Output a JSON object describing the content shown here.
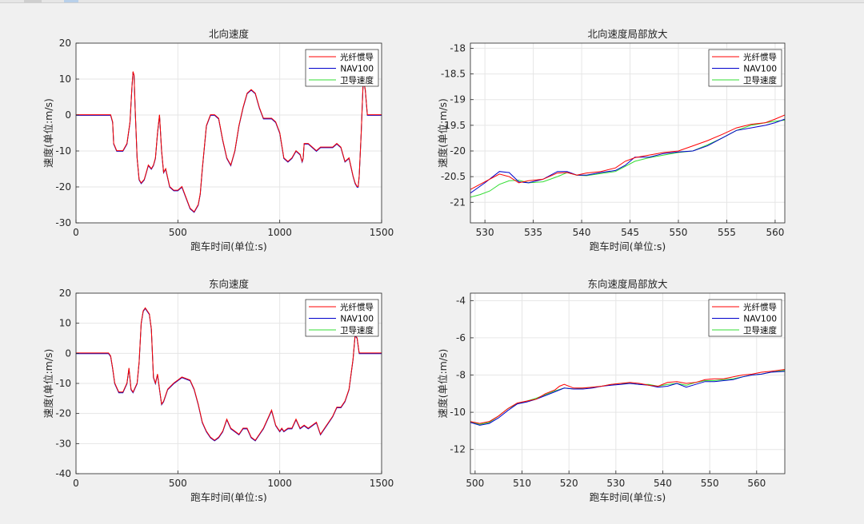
{
  "chart_data": [
    {
      "type": "line",
      "title": "北向速度",
      "xlabel": "跑车时间(单位:s)",
      "ylabel": "速度(单位:m/s)",
      "xlim": [
        0,
        1500
      ],
      "ylim": [
        -30,
        20
      ],
      "xticks": [
        0,
        500,
        1000,
        1500
      ],
      "yticks": [
        -30,
        -20,
        -10,
        0,
        10,
        20
      ],
      "grid": true,
      "legend_position": "top-right",
      "series": [
        {
          "name": "光纤惯导",
          "color": "#ff0000"
        },
        {
          "name": "NAV100",
          "color": "#0000cc"
        },
        {
          "name": "卫导速度",
          "color": "#33dd33"
        }
      ],
      "x": [
        0,
        170,
        180,
        185,
        200,
        215,
        230,
        250,
        265,
        275,
        280,
        285,
        290,
        300,
        310,
        320,
        335,
        345,
        355,
        370,
        380,
        390,
        400,
        410,
        420,
        430,
        440,
        460,
        480,
        500,
        520,
        540,
        560,
        580,
        600,
        610,
        620,
        640,
        660,
        680,
        700,
        720,
        740,
        760,
        780,
        800,
        820,
        840,
        860,
        880,
        900,
        920,
        940,
        960,
        980,
        1000,
        1020,
        1040,
        1060,
        1080,
        1100,
        1110,
        1115,
        1120,
        1140,
        1160,
        1180,
        1200,
        1220,
        1240,
        1260,
        1280,
        1300,
        1320,
        1340,
        1360,
        1370,
        1380,
        1385,
        1390,
        1400,
        1410,
        1420,
        1430,
        1500
      ],
      "values": [
        0,
        0,
        -2,
        -8,
        -10,
        -10,
        -10,
        -8,
        -2,
        8,
        12,
        11,
        2,
        -12,
        -18,
        -19,
        -18,
        -16,
        -14,
        -15,
        -14,
        -12,
        -5,
        0,
        -10,
        -16,
        -15,
        -20,
        -21,
        -21,
        -20,
        -23,
        -26,
        -27,
        -25,
        -22,
        -15,
        -3,
        0,
        0,
        -1,
        -7,
        -12,
        -14,
        -10,
        -3,
        2,
        6,
        7,
        6,
        2,
        -1,
        -1,
        -1,
        -2,
        -5,
        -12,
        -13,
        -12,
        -10,
        -11,
        -13,
        -12,
        -8,
        -8,
        -9,
        -10,
        -9,
        -9,
        -9,
        -9,
        -8,
        -9,
        -13,
        -12,
        -17,
        -19,
        -20,
        -20,
        -17,
        -5,
        10,
        7,
        0,
        0
      ]
    },
    {
      "type": "line",
      "title": "北向速度局部放大",
      "xlabel": "跑车时间(单位:s)",
      "ylabel": "速度(单位:m/s)",
      "xlim": [
        528.5,
        561
      ],
      "ylim": [
        -21.4,
        -17.9
      ],
      "xticks": [
        530,
        535,
        540,
        545,
        550,
        555,
        560
      ],
      "yticks": [
        -21,
        -20.5,
        -20,
        -19.5,
        -19,
        -18.5,
        -18
      ],
      "grid": true,
      "legend_position": "top-right",
      "series": [
        {
          "name": "光纤惯导",
          "color": "#ff0000",
          "x": [
            528.5,
            530,
            531.5,
            532.5,
            533.5,
            534.5,
            536,
            537.5,
            538.5,
            539.5,
            540.5,
            542,
            543.5,
            544.5,
            545.5,
            547,
            548.5,
            550,
            551.5,
            553,
            554.5,
            556,
            557.5,
            559,
            560,
            561
          ],
          "values": [
            -20.75,
            -20.6,
            -20.45,
            -20.5,
            -20.62,
            -20.58,
            -20.55,
            -20.43,
            -20.42,
            -20.47,
            -20.43,
            -20.4,
            -20.33,
            -20.2,
            -20.13,
            -20.08,
            -20.03,
            -20,
            -19.9,
            -19.8,
            -19.68,
            -19.55,
            -19.48,
            -19.45,
            -19.38,
            -19.3
          ]
        },
        {
          "name": "NAV100",
          "color": "#0000cc",
          "x": [
            528.5,
            530,
            531.5,
            532.5,
            533.5,
            534.5,
            536,
            537.5,
            538.5,
            539.5,
            540.5,
            542,
            543.5,
            544.5,
            545.5,
            547,
            548.5,
            550,
            551.5,
            553,
            554.5,
            556,
            557.5,
            559,
            560,
            561
          ],
          "values": [
            -20.82,
            -20.62,
            -20.4,
            -20.42,
            -20.6,
            -20.62,
            -20.55,
            -20.4,
            -20.4,
            -20.47,
            -20.47,
            -20.42,
            -20.38,
            -20.28,
            -20.12,
            -20.12,
            -20.05,
            -20.02,
            -20,
            -19.9,
            -19.75,
            -19.6,
            -19.55,
            -19.5,
            -19.45,
            -19.38
          ]
        },
        {
          "name": "卫导速度",
          "color": "#33dd33",
          "x": [
            528.5,
            529.5,
            530.5,
            531.5,
            532.5,
            533.5,
            534.5,
            536,
            537.5,
            538.5,
            539.5,
            540.5,
            542,
            543.5,
            544.5,
            545.5,
            547,
            548.5,
            550,
            551.5,
            553,
            554.5,
            556,
            557.5,
            559,
            560,
            561
          ],
          "values": [
            -20.9,
            -20.85,
            -20.78,
            -20.65,
            -20.58,
            -20.57,
            -20.62,
            -20.6,
            -20.5,
            -20.42,
            -20.47,
            -20.48,
            -20.44,
            -20.4,
            -20.3,
            -20.2,
            -20.13,
            -20.08,
            -20.03,
            -20,
            -19.88,
            -19.75,
            -19.6,
            -19.5,
            -19.45,
            -19.42,
            -19.4
          ]
        }
      ]
    },
    {
      "type": "line",
      "title": "东向速度",
      "xlabel": "跑车时间(单位:s)",
      "ylabel": "速度(单位:m/s)",
      "xlim": [
        0,
        1500
      ],
      "ylim": [
        -40,
        20
      ],
      "xticks": [
        0,
        500,
        1000,
        1500
      ],
      "yticks": [
        -40,
        -30,
        -20,
        -10,
        0,
        10,
        20
      ],
      "grid": true,
      "legend_position": "top-right",
      "series": [
        {
          "name": "光纤惯导",
          "color": "#ff0000"
        },
        {
          "name": "NAV100",
          "color": "#0000cc"
        },
        {
          "name": "卫导速度",
          "color": "#33dd33"
        }
      ],
      "x": [
        0,
        160,
        170,
        180,
        190,
        210,
        230,
        250,
        260,
        270,
        280,
        300,
        310,
        320,
        330,
        340,
        350,
        360,
        370,
        380,
        390,
        400,
        410,
        420,
        430,
        450,
        480,
        500,
        520,
        560,
        580,
        600,
        620,
        640,
        660,
        680,
        700,
        720,
        740,
        760,
        780,
        800,
        820,
        840,
        860,
        880,
        900,
        920,
        940,
        960,
        980,
        1000,
        1010,
        1020,
        1040,
        1060,
        1080,
        1100,
        1120,
        1140,
        1160,
        1180,
        1200,
        1220,
        1240,
        1260,
        1280,
        1300,
        1320,
        1340,
        1360,
        1370,
        1380,
        1390,
        1400,
        1410,
        1420,
        1430,
        1500
      ],
      "values": [
        0,
        0,
        -1,
        -5,
        -10,
        -13,
        -13,
        -10,
        -5,
        -12,
        -13,
        -10,
        -3,
        10,
        14,
        15,
        14,
        13,
        8,
        -8,
        -10,
        -7,
        -12,
        -17,
        -16,
        -12,
        -10,
        -9,
        -8,
        -9,
        -12,
        -17,
        -23,
        -26,
        -28,
        -29,
        -28,
        -26,
        -22,
        -25,
        -26,
        -27,
        -25,
        -25,
        -28,
        -29,
        -27,
        -25,
        -22,
        -19,
        -24,
        -26,
        -25,
        -26,
        -25,
        -25,
        -22,
        -25,
        -24,
        -25,
        -24,
        -23,
        -27,
        -25,
        -23,
        -21,
        -18,
        -18,
        -16,
        -12,
        -2,
        6,
        5,
        0,
        0,
        0,
        0,
        0,
        0
      ]
    },
    {
      "type": "line",
      "title": "东向速度局部放大",
      "xlabel": "跑车时间(单位:s)",
      "ylabel": "速度(单位:m/s)",
      "xlim": [
        499,
        566
      ],
      "ylim": [
        -13.3,
        -3.6
      ],
      "xticks": [
        500,
        510,
        520,
        530,
        540,
        550,
        560
      ],
      "yticks": [
        -12,
        -10,
        -8,
        -6,
        -4
      ],
      "grid": true,
      "legend_position": "top-right",
      "series": [
        {
          "name": "光纤惯导",
          "color": "#ff0000",
          "x": [
            499,
            501,
            503,
            505,
            507,
            509,
            511,
            513,
            515,
            517,
            518,
            519,
            521,
            523,
            525,
            527,
            529,
            531,
            533,
            535,
            537,
            539,
            541,
            543,
            545,
            547,
            549,
            551,
            553,
            555,
            557,
            559,
            561,
            563,
            566
          ],
          "values": [
            -10.5,
            -10.6,
            -10.5,
            -10.2,
            -9.8,
            -9.5,
            -9.4,
            -9.3,
            -9.0,
            -8.8,
            -8.6,
            -8.5,
            -8.7,
            -8.7,
            -8.65,
            -8.6,
            -8.5,
            -8.45,
            -8.4,
            -8.45,
            -8.55,
            -8.6,
            -8.4,
            -8.35,
            -8.45,
            -8.4,
            -8.25,
            -8.2,
            -8.2,
            -8.1,
            -8.0,
            -7.95,
            -7.85,
            -7.8,
            -7.7
          ]
        },
        {
          "name": "NAV100",
          "color": "#0000cc",
          "x": [
            499,
            501,
            503,
            505,
            507,
            509,
            511,
            513,
            515,
            517,
            519,
            521,
            523,
            525,
            527,
            529,
            531,
            533,
            535,
            537,
            539,
            541,
            543,
            545,
            547,
            549,
            551,
            553,
            555,
            557,
            559,
            561,
            563,
            566
          ],
          "values": [
            -10.55,
            -10.7,
            -10.6,
            -10.3,
            -9.9,
            -9.55,
            -9.45,
            -9.3,
            -9.1,
            -8.9,
            -8.7,
            -8.75,
            -8.75,
            -8.7,
            -8.6,
            -8.55,
            -8.5,
            -8.45,
            -8.5,
            -8.55,
            -8.65,
            -8.6,
            -8.45,
            -8.65,
            -8.5,
            -8.35,
            -8.35,
            -8.3,
            -8.25,
            -8.1,
            -8.0,
            -7.95,
            -7.85,
            -7.8
          ]
        },
        {
          "name": "卫导速度",
          "color": "#33dd33",
          "x": [
            499,
            501,
            503,
            505,
            507,
            509,
            511,
            513,
            515,
            517,
            519,
            521,
            523,
            525,
            527,
            529,
            531,
            533,
            535,
            537,
            539,
            541,
            543,
            545,
            547,
            549,
            551,
            553,
            555,
            557,
            559,
            561,
            563,
            566
          ],
          "values": [
            -10.5,
            -10.65,
            -10.55,
            -10.2,
            -9.8,
            -9.55,
            -9.4,
            -9.25,
            -9.05,
            -8.85,
            -8.7,
            -8.75,
            -8.7,
            -8.65,
            -8.6,
            -8.5,
            -8.45,
            -8.45,
            -8.5,
            -8.5,
            -8.6,
            -8.5,
            -8.45,
            -8.55,
            -8.4,
            -8.3,
            -8.3,
            -8.25,
            -8.2,
            -8.1,
            -8.0,
            -7.95,
            -7.85,
            -7.75
          ]
        }
      ]
    }
  ]
}
